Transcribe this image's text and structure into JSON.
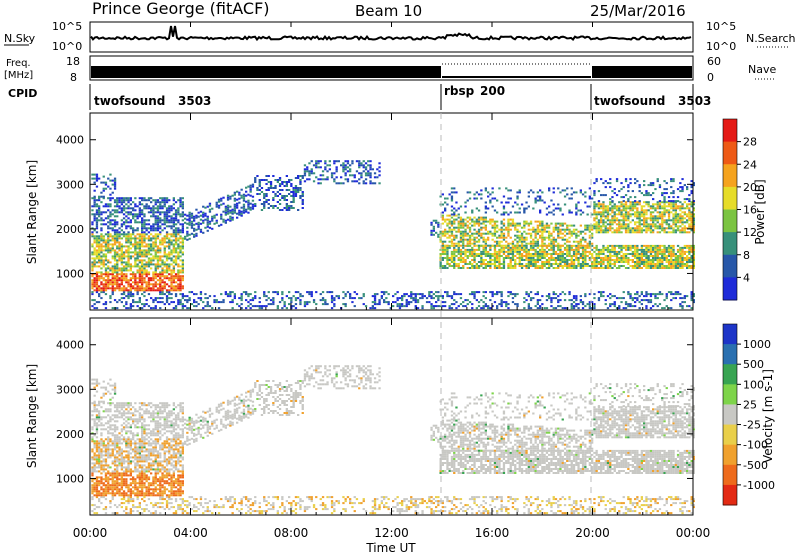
{
  "header": {
    "site": "Prince George (fitACF)",
    "beam": "Beam 10",
    "date": "25/Mar/2016"
  },
  "summary": {
    "nsky_label": "N.Sky",
    "nsky_ticks": [
      "10^5",
      "10^0"
    ],
    "nsearch_label": "N.Search",
    "nsearch_ticks": [
      "10^5",
      "10^0"
    ],
    "freq_label_line1": "Freq.",
    "freq_label_line2": "[MHz]",
    "freq_ticks": [
      "18",
      "8"
    ],
    "nave_label": "Nave",
    "nave_ticks": [
      "60",
      "0"
    ],
    "cpid_label": "CPID",
    "cpid_segments": [
      {
        "name": "twofsound",
        "id": "3503",
        "start_hour": 0,
        "end_hour": 14
      },
      {
        "name": "rbsp",
        "id": "200",
        "start_hour": 14,
        "end_hour": 20
      },
      {
        "name": "twofsound",
        "id": "3503",
        "start_hour": 20,
        "end_hour": 24
      }
    ]
  },
  "chart_data": [
    {
      "type": "heatmap",
      "name": "power",
      "ylabel": "Slant Range [km]",
      "ylim": [
        180,
        4600
      ],
      "yticks": [
        1000,
        2000,
        3000,
        4000
      ],
      "xlim": [
        0,
        24
      ],
      "colorbar_label": "Power [dB]",
      "colorbar_ticks": [
        "4",
        "8",
        "12",
        "16",
        "20",
        "24",
        "28"
      ],
      "colors": [
        "#1e2bd8",
        "#2757a8",
        "#37907a",
        "#7bc442",
        "#e6dc29",
        "#f5a31e",
        "#ee5a16",
        "#e41a15"
      ]
    },
    {
      "type": "heatmap",
      "name": "velocity",
      "ylabel": "Slant Range [km]",
      "ylim": [
        180,
        4600
      ],
      "yticks": [
        1000,
        2000,
        3000,
        4000
      ],
      "xlim": [
        0,
        24
      ],
      "colorbar_label": "Velocity [m s-1]",
      "colorbar_ticks": [
        "1000",
        "500",
        "100",
        "25",
        "-25",
        "-100",
        "-500",
        "-1000"
      ],
      "colors": [
        "#1d35c8",
        "#2a70b0",
        "#38a452",
        "#7ed44a",
        "#c8c8c4",
        "#e9cf4a",
        "#f0a12e",
        "#ee6b1c",
        "#e32a14"
      ]
    }
  ],
  "xaxis": {
    "label": "Time UT",
    "ticks": [
      "00:00",
      "04:00",
      "08:00",
      "12:00",
      "16:00",
      "20:00",
      "00:00"
    ]
  }
}
